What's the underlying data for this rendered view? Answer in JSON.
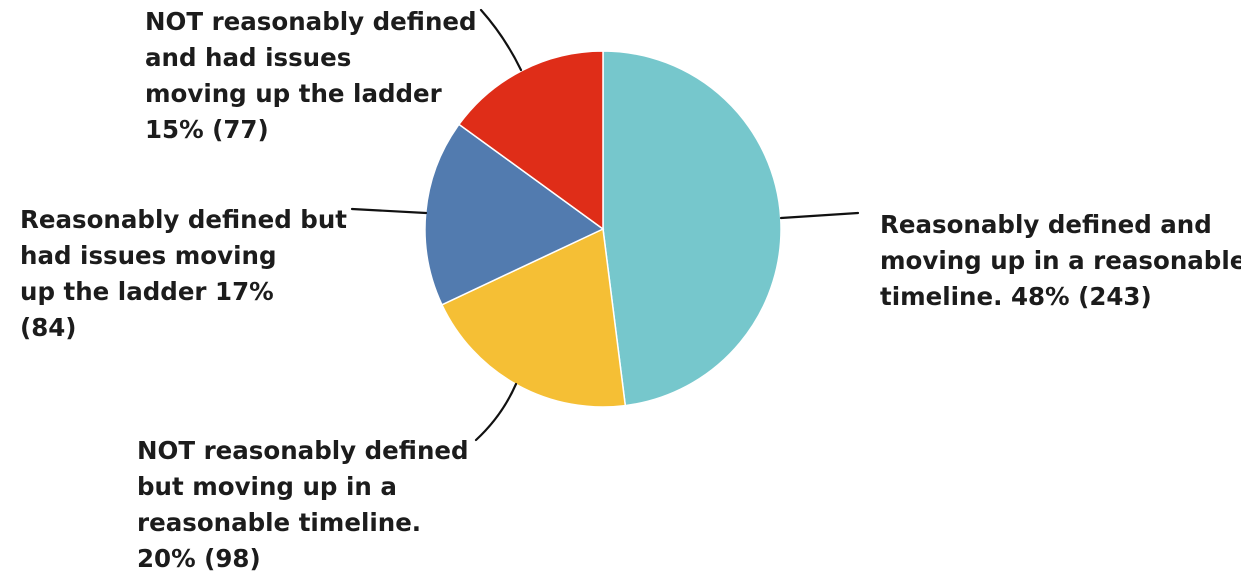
{
  "chart_data": {
    "type": "pie",
    "start_angle_deg": 0,
    "direction": "clockwise",
    "slices": [
      {
        "value": 48,
        "count": 243,
        "color": "#76c7cc",
        "label_lines": [
          "Reasonably defined and",
          "moving up in a reasonable",
          "timeline. 48% (243)"
        ]
      },
      {
        "value": 20,
        "count": 98,
        "color": "#f5bf35",
        "label_lines": [
          "NOT reasonably defined",
          "but moving up in a",
          "reasonable timeline.",
          "20% (98)"
        ]
      },
      {
        "value": 17,
        "count": 84,
        "color": "#527baf",
        "label_lines": [
          "Reasonably defined but",
          "had issues moving",
          "up the ladder 17%",
          "(84)"
        ]
      },
      {
        "value": 15,
        "count": 77,
        "color": "#df2d18",
        "label_lines": [
          "NOT reasonably defined",
          "and had issues",
          "moving up the ladder",
          "15% (77)"
        ]
      }
    ]
  }
}
